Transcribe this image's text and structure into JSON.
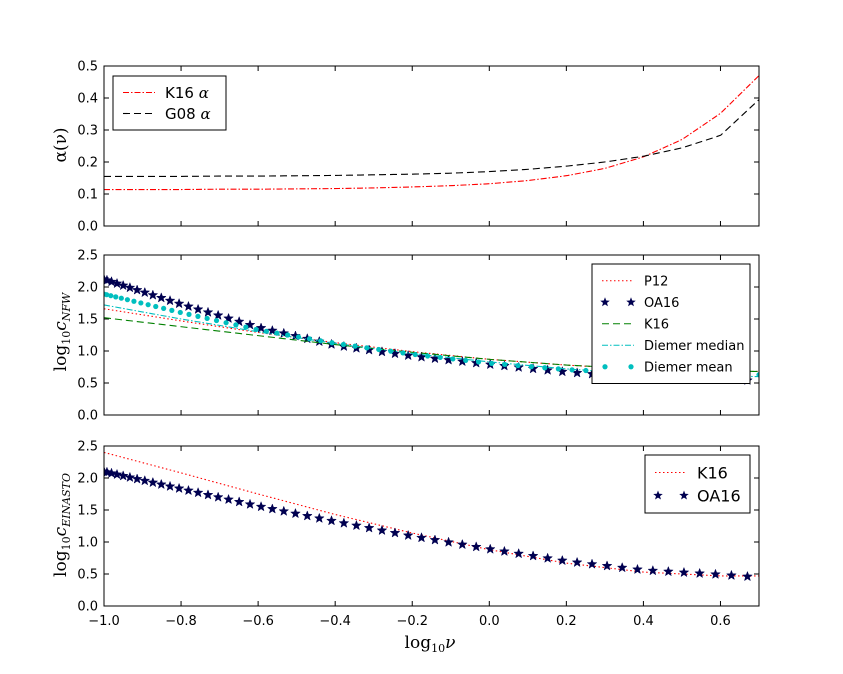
{
  "chart_data": [
    {
      "type": "line",
      "ylabel": "α(ν)",
      "xlim": [
        -1.0,
        0.7
      ],
      "ylim": [
        0.0,
        0.5
      ],
      "yticks": [
        "0.0",
        "0.1",
        "0.2",
        "0.3",
        "0.4",
        "0.5"
      ],
      "xticks": [],
      "legend_position": "top-left",
      "series": [
        {
          "name": "K16 α",
          "label_main": "K16",
          "label_sym": "α",
          "style": "dashdot",
          "color": "#ff0000",
          "x": [
            -1.0,
            -0.9,
            -0.8,
            -0.7,
            -0.6,
            -0.5,
            -0.4,
            -0.3,
            -0.2,
            -0.1,
            0.0,
            0.1,
            0.2,
            0.3,
            0.4,
            0.5,
            0.6,
            0.7
          ],
          "y": [
            0.114,
            0.114,
            0.114,
            0.115,
            0.115,
            0.116,
            0.117,
            0.119,
            0.122,
            0.126,
            0.132,
            0.142,
            0.157,
            0.18,
            0.216,
            0.27,
            0.352,
            0.47
          ]
        },
        {
          "name": "G08 α",
          "label_main": "G08",
          "label_sym": "α",
          "style": "dashed",
          "color": "#000000",
          "x": [
            -1.0,
            -0.9,
            -0.8,
            -0.7,
            -0.6,
            -0.5,
            -0.4,
            -0.3,
            -0.2,
            -0.1,
            0.0,
            0.1,
            0.2,
            0.3,
            0.4,
            0.5,
            0.6,
            0.7
          ],
          "y": [
            0.155,
            0.155,
            0.155,
            0.156,
            0.156,
            0.157,
            0.158,
            0.16,
            0.162,
            0.165,
            0.17,
            0.177,
            0.187,
            0.2,
            0.218,
            0.244,
            0.283,
            0.395
          ]
        }
      ]
    },
    {
      "type": "line",
      "ylabel": "log₁₀c_NFW",
      "ylabel_main": "log",
      "ylabel_sub1": "10",
      "ylabel_c": "c",
      "ylabel_sub2": "NFW",
      "xlim": [
        -1.0,
        0.7
      ],
      "ylim": [
        0.0,
        2.5
      ],
      "yticks": [
        "0.0",
        "0.5",
        "1.0",
        "1.5",
        "2.0",
        "2.5"
      ],
      "xticks": [],
      "legend_position": "top-right",
      "series": [
        {
          "name": "P12",
          "style": "dotted",
          "color": "#ff0000",
          "x": [
            -1.0,
            -0.8,
            -0.6,
            -0.4,
            -0.2,
            0.0,
            0.2,
            0.4,
            0.6,
            0.7
          ],
          "y": [
            1.66,
            1.47,
            1.29,
            1.13,
            0.99,
            0.87,
            0.78,
            0.71,
            0.68,
            0.68
          ]
        },
        {
          "name": "OA16",
          "style": "stars",
          "color": "#000050",
          "x": [
            -1.0,
            -0.8,
            -0.6,
            -0.4,
            -0.2,
            0.0,
            0.2,
            0.4,
            0.6,
            0.67
          ],
          "y": [
            2.12,
            1.73,
            1.37,
            1.09,
            0.92,
            0.79,
            0.67,
            0.58,
            0.56,
            0.54
          ]
        },
        {
          "name": "K16",
          "style": "dashed",
          "color": "#008000",
          "x": [
            -1.0,
            -0.8,
            -0.6,
            -0.4,
            -0.2,
            0.0,
            0.2,
            0.4,
            0.6,
            0.7
          ],
          "y": [
            1.52,
            1.38,
            1.24,
            1.1,
            0.98,
            0.87,
            0.78,
            0.72,
            0.69,
            0.68
          ]
        },
        {
          "name": "Diemer median",
          "style": "dashdot",
          "color": "#00bfbf",
          "x": [
            -1.0,
            -0.8,
            -0.6,
            -0.4,
            -0.2,
            0.0,
            0.2,
            0.4,
            0.6,
            0.7
          ],
          "y": [
            1.72,
            1.5,
            1.3,
            1.12,
            0.96,
            0.83,
            0.72,
            0.64,
            0.61,
            0.6
          ]
        },
        {
          "name": "Diemer mean",
          "style": "dots",
          "color": "#00bfbf",
          "x": [
            -1.0,
            -0.8,
            -0.6,
            -0.4,
            -0.2,
            0.0,
            0.2,
            0.4,
            0.6,
            0.7
          ],
          "y": [
            1.89,
            1.6,
            1.33,
            1.12,
            0.95,
            0.81,
            0.71,
            0.65,
            0.63,
            0.63
          ]
        }
      ]
    },
    {
      "type": "line",
      "ylabel": "log₁₀c_EINASTO",
      "ylabel_main": "log",
      "ylabel_sub1": "10",
      "ylabel_c": "c",
      "ylabel_sub2": "EINASTO",
      "xlabel": "log₁₀ν",
      "xlabel_main": "log",
      "xlabel_sub": "10",
      "xlabel_sym": "ν",
      "xlim": [
        -1.0,
        0.7
      ],
      "ylim": [
        0.0,
        2.5
      ],
      "yticks": [
        "0.0",
        "0.5",
        "1.0",
        "1.5",
        "2.0",
        "2.5"
      ],
      "xticks": [
        "−1.0",
        "−0.8",
        "−0.6",
        "−0.4",
        "−0.2",
        "0.0",
        "0.2",
        "0.4",
        "0.6"
      ],
      "xtick_values": [
        -1.0,
        -0.8,
        -0.6,
        -0.4,
        -0.2,
        0.0,
        0.2,
        0.4,
        0.6
      ],
      "legend_position": "top-right",
      "series": [
        {
          "name": "K16",
          "style": "dotted",
          "color": "#ff0000",
          "x": [
            -1.0,
            -0.8,
            -0.6,
            -0.4,
            -0.2,
            0.0,
            0.2,
            0.4,
            0.6,
            0.7
          ],
          "y": [
            2.4,
            2.08,
            1.75,
            1.43,
            1.14,
            0.88,
            0.67,
            0.53,
            0.47,
            0.47
          ]
        },
        {
          "name": "OA16",
          "style": "stars",
          "color": "#000050",
          "x": [
            -1.0,
            -0.8,
            -0.6,
            -0.4,
            -0.2,
            0.0,
            0.2,
            0.4,
            0.6,
            0.67
          ],
          "y": [
            2.1,
            1.83,
            1.56,
            1.32,
            1.09,
            0.89,
            0.7,
            0.56,
            0.49,
            0.46
          ]
        }
      ]
    }
  ]
}
